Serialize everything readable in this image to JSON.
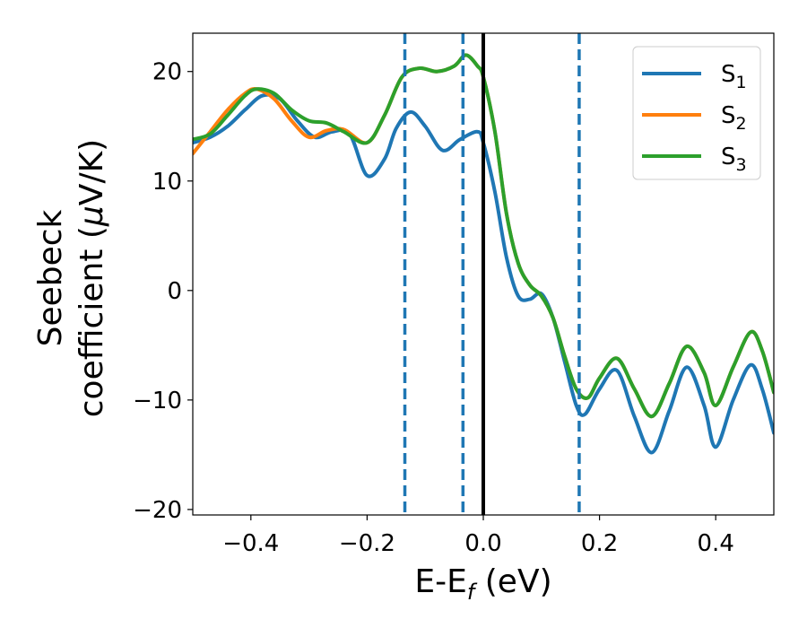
{
  "chart_data": {
    "type": "line",
    "title": "",
    "xlabel": {
      "main": "E-E",
      "sub": "f",
      "suffix": " (eV)"
    },
    "ylabel": {
      "line1": "Seebeck",
      "line2_prefix": "coefficient  (",
      "line2_mu": "μ",
      "line2_suffix": "V/K)"
    },
    "xlim": [
      -0.5,
      0.5
    ],
    "ylim": [
      -20.5,
      23.5
    ],
    "x_ticks": [
      -0.4,
      -0.2,
      0.0,
      0.2,
      0.4
    ],
    "x_tick_labels": [
      "−0.4",
      "−0.2",
      "0.0",
      "0.2",
      "0.4"
    ],
    "y_ticks": [
      -20,
      -10,
      0,
      10,
      20
    ],
    "y_tick_labels": [
      "−20",
      "−10",
      "0",
      "10",
      "20"
    ],
    "grid": false,
    "legend_position": "top-right",
    "vertical_lines": [
      {
        "x": -0.135,
        "style": "dashed",
        "color": "#1f77b4"
      },
      {
        "x": -0.035,
        "style": "dashed",
        "color": "#1f77b4"
      },
      {
        "x": 0.0,
        "style": "solid",
        "color": "#000000"
      },
      {
        "x": 0.165,
        "style": "dashed",
        "color": "#1f77b4"
      }
    ],
    "series": [
      {
        "name": "S",
        "subscript": "1",
        "color": "#1f77b4",
        "points": [
          [
            -0.5,
            13.5
          ],
          [
            -0.47,
            14.0
          ],
          [
            -0.44,
            15.0
          ],
          [
            -0.41,
            16.5
          ],
          [
            -0.38,
            17.8
          ],
          [
            -0.35,
            17.5
          ],
          [
            -0.32,
            15.5
          ],
          [
            -0.29,
            14.0
          ],
          [
            -0.26,
            14.5
          ],
          [
            -0.23,
            14.3
          ],
          [
            -0.2,
            10.5
          ],
          [
            -0.17,
            12.0
          ],
          [
            -0.15,
            14.8
          ],
          [
            -0.125,
            16.3
          ],
          [
            -0.1,
            15.0
          ],
          [
            -0.07,
            12.8
          ],
          [
            -0.04,
            13.8
          ],
          [
            -0.01,
            14.5
          ],
          [
            0.0,
            13.5
          ],
          [
            0.02,
            9.0
          ],
          [
            0.04,
            3.0
          ],
          [
            0.06,
            -0.5
          ],
          [
            0.08,
            -0.8
          ],
          [
            0.1,
            -0.3
          ],
          [
            0.12,
            -2.5
          ],
          [
            0.14,
            -6.5
          ],
          [
            0.16,
            -10.5
          ],
          [
            0.175,
            -11.3
          ],
          [
            0.2,
            -9.0
          ],
          [
            0.23,
            -7.3
          ],
          [
            0.26,
            -11.5
          ],
          [
            0.29,
            -14.8
          ],
          [
            0.32,
            -11.0
          ],
          [
            0.35,
            -7.0
          ],
          [
            0.38,
            -10.5
          ],
          [
            0.4,
            -14.3
          ],
          [
            0.43,
            -10.0
          ],
          [
            0.46,
            -6.8
          ],
          [
            0.48,
            -9.0
          ],
          [
            0.5,
            -13.0
          ]
        ]
      },
      {
        "name": "S",
        "subscript": "2",
        "color": "#ff7f0e",
        "points": [
          [
            -0.5,
            12.5
          ],
          [
            -0.47,
            14.5
          ],
          [
            -0.44,
            16.5
          ],
          [
            -0.41,
            18.0
          ],
          [
            -0.39,
            18.4
          ],
          [
            -0.36,
            17.5
          ],
          [
            -0.33,
            15.5
          ],
          [
            -0.3,
            14.0
          ],
          [
            -0.27,
            14.6
          ],
          [
            -0.24,
            14.7
          ],
          [
            -0.2,
            13.5
          ],
          [
            -0.17,
            16.0
          ],
          [
            -0.14,
            19.5
          ],
          [
            -0.11,
            20.3
          ],
          [
            -0.08,
            20.0
          ],
          [
            -0.05,
            20.5
          ],
          [
            -0.03,
            21.5
          ],
          [
            -0.01,
            20.5
          ],
          [
            0.0,
            19.5
          ],
          [
            0.02,
            14.5
          ],
          [
            0.04,
            7.0
          ],
          [
            0.06,
            2.5
          ],
          [
            0.08,
            0.5
          ],
          [
            0.1,
            -0.5
          ],
          [
            0.12,
            -2.5
          ],
          [
            0.14,
            -6.0
          ],
          [
            0.16,
            -9.0
          ],
          [
            0.18,
            -9.8
          ],
          [
            0.2,
            -8.0
          ],
          [
            0.23,
            -6.2
          ],
          [
            0.26,
            -9.0
          ],
          [
            0.29,
            -11.5
          ],
          [
            0.32,
            -8.5
          ],
          [
            0.35,
            -5.1
          ],
          [
            0.38,
            -7.5
          ],
          [
            0.4,
            -10.5
          ],
          [
            0.43,
            -7.0
          ],
          [
            0.46,
            -3.8
          ],
          [
            0.48,
            -5.5
          ],
          [
            0.5,
            -9.3
          ]
        ]
      },
      {
        "name": "S",
        "subscript": "3",
        "color": "#2ca02c",
        "points": [
          [
            -0.5,
            13.8
          ],
          [
            -0.47,
            14.3
          ],
          [
            -0.44,
            16.0
          ],
          [
            -0.41,
            17.8
          ],
          [
            -0.39,
            18.4
          ],
          [
            -0.36,
            18.0
          ],
          [
            -0.33,
            16.5
          ],
          [
            -0.3,
            15.5
          ],
          [
            -0.27,
            15.3
          ],
          [
            -0.24,
            14.5
          ],
          [
            -0.2,
            13.5
          ],
          [
            -0.17,
            16.0
          ],
          [
            -0.14,
            19.5
          ],
          [
            -0.11,
            20.3
          ],
          [
            -0.08,
            20.0
          ],
          [
            -0.05,
            20.5
          ],
          [
            -0.03,
            21.5
          ],
          [
            -0.01,
            20.5
          ],
          [
            0.0,
            19.5
          ],
          [
            0.02,
            14.5
          ],
          [
            0.04,
            7.0
          ],
          [
            0.06,
            2.5
          ],
          [
            0.08,
            0.5
          ],
          [
            0.1,
            -0.5
          ],
          [
            0.12,
            -2.5
          ],
          [
            0.14,
            -6.0
          ],
          [
            0.16,
            -9.0
          ],
          [
            0.18,
            -9.8
          ],
          [
            0.2,
            -8.0
          ],
          [
            0.23,
            -6.2
          ],
          [
            0.26,
            -9.0
          ],
          [
            0.29,
            -11.5
          ],
          [
            0.32,
            -8.5
          ],
          [
            0.35,
            -5.1
          ],
          [
            0.38,
            -7.5
          ],
          [
            0.4,
            -10.5
          ],
          [
            0.43,
            -7.0
          ],
          [
            0.46,
            -3.8
          ],
          [
            0.48,
            -5.5
          ],
          [
            0.5,
            -9.3
          ]
        ]
      }
    ]
  }
}
